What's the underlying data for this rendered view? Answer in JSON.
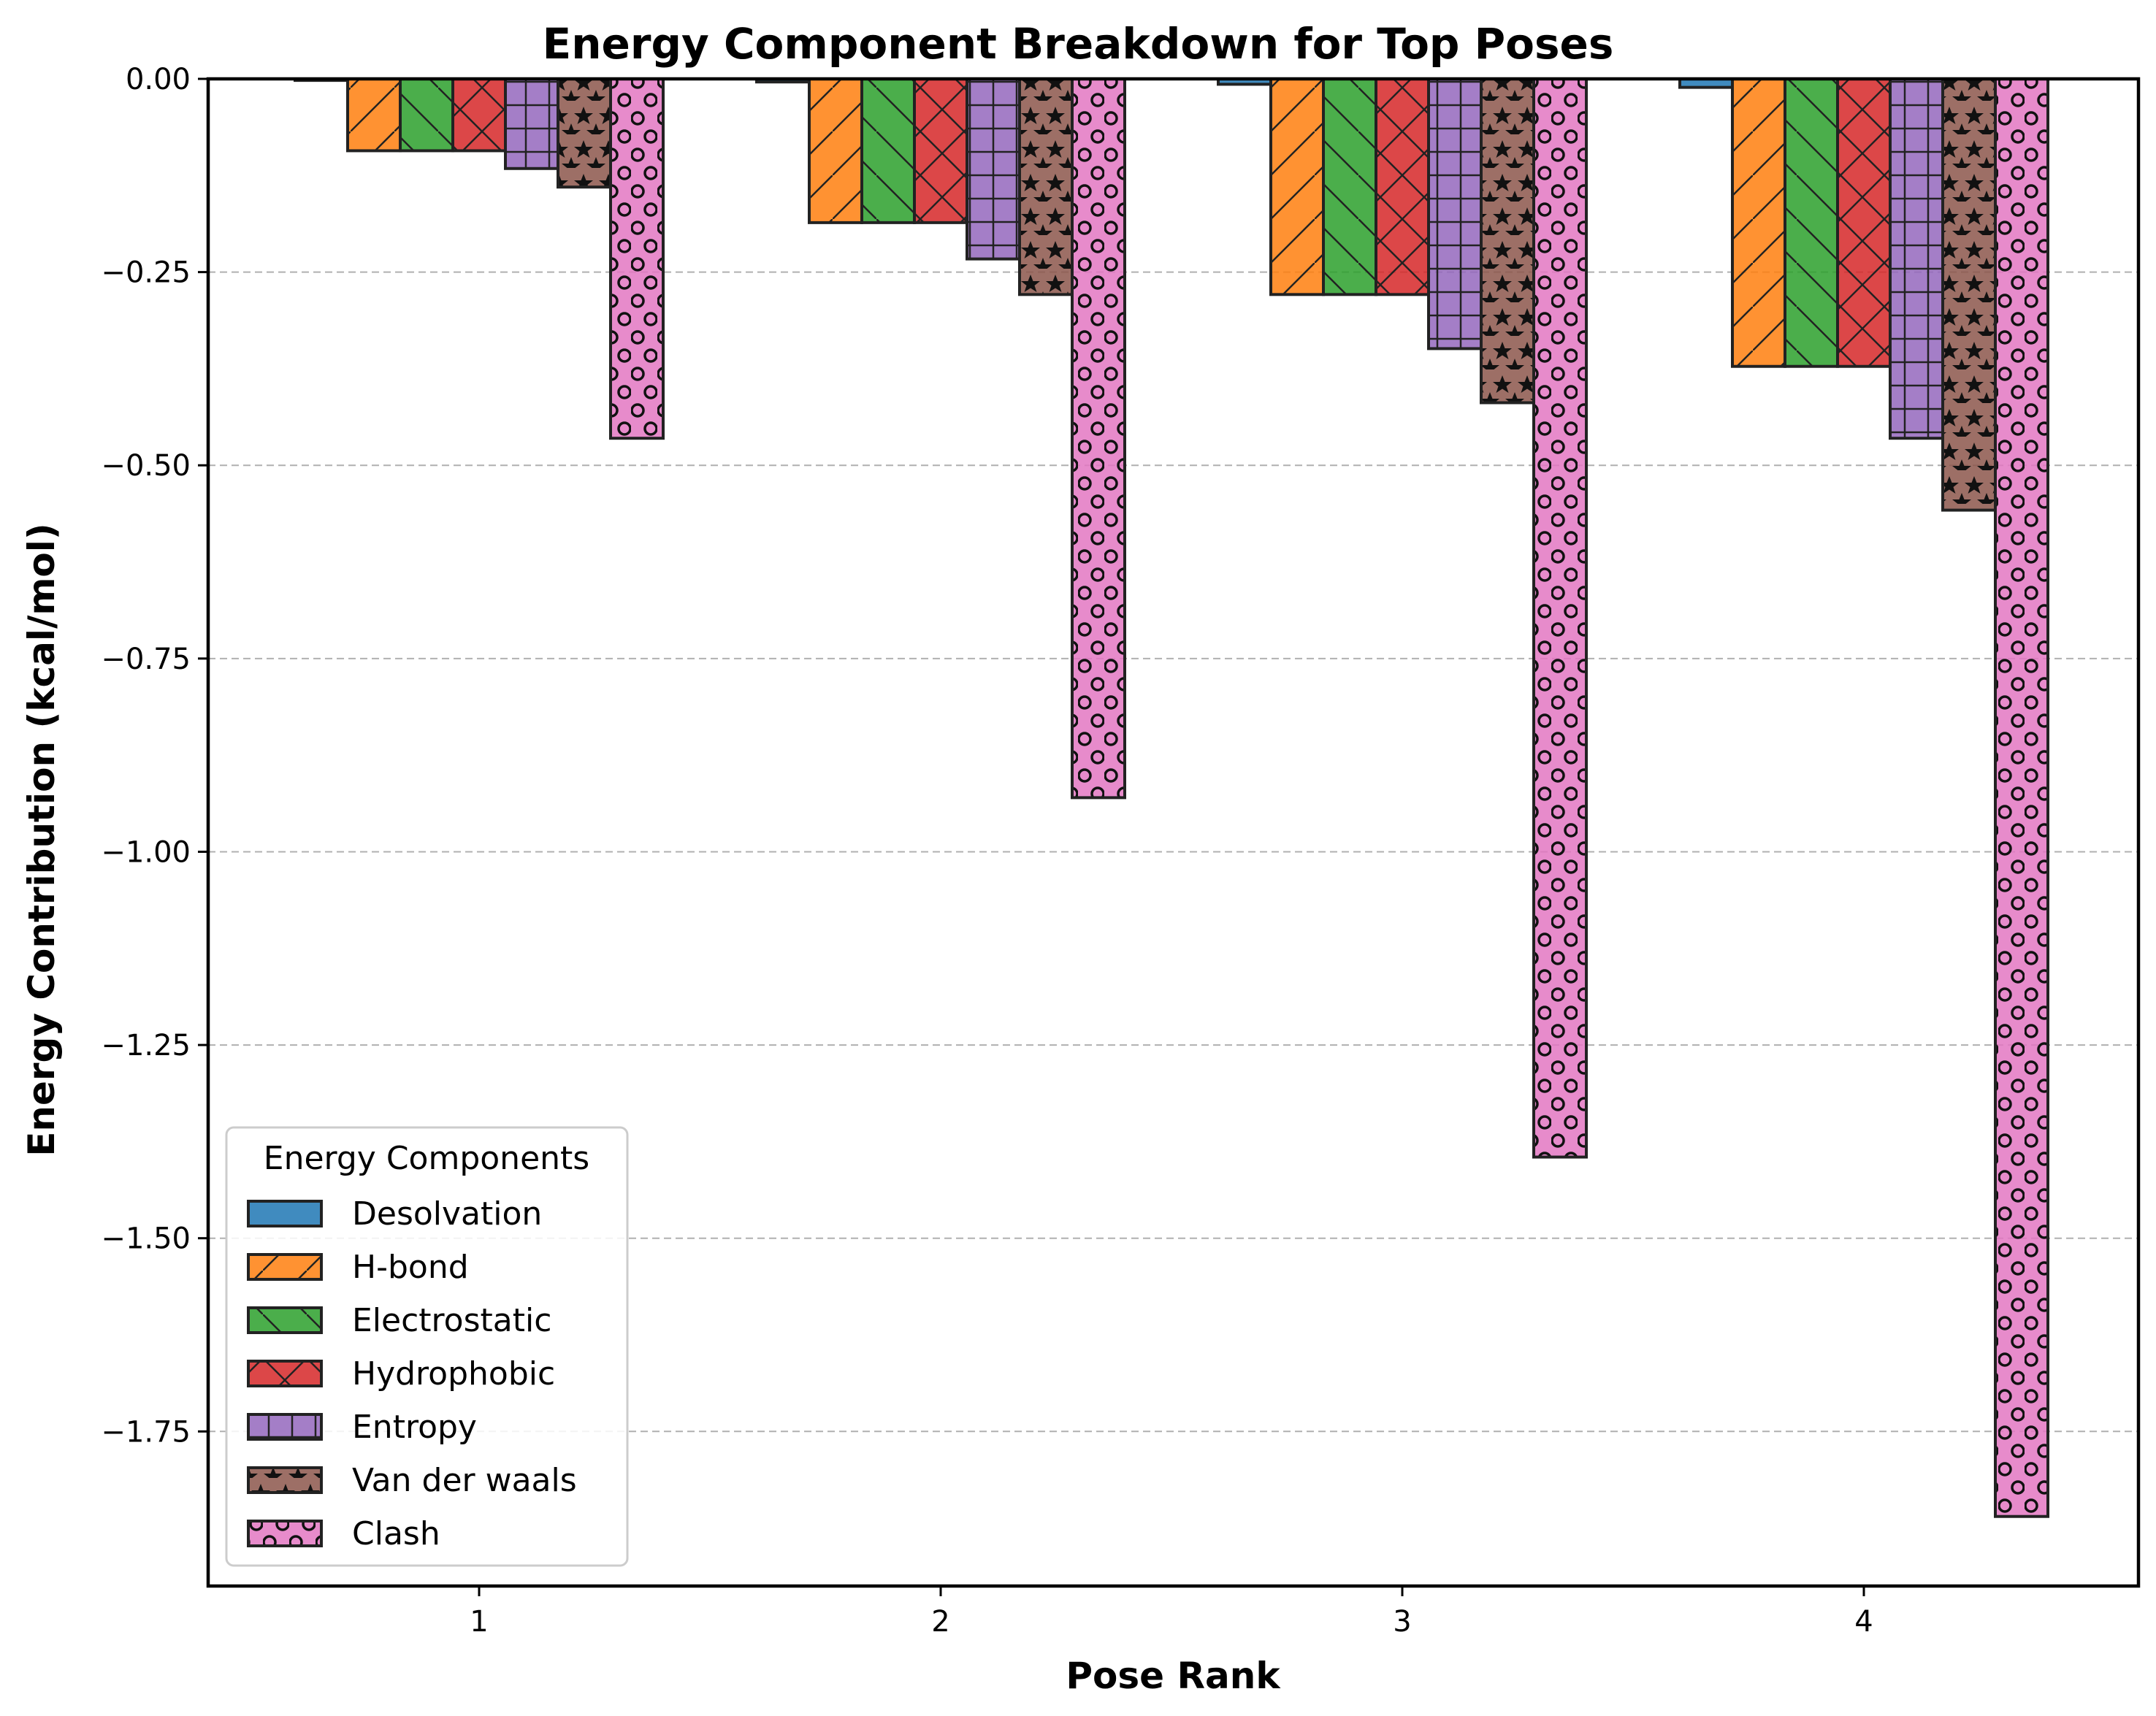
{
  "chart_data": {
    "type": "bar",
    "title": "Energy Component Breakdown for Top Poses",
    "xlabel": "Pose Rank",
    "ylabel": "Energy Contribution (kcal/mol)",
    "categories": [
      "1",
      "2",
      "3",
      "4"
    ],
    "ylim": [
      -1.95,
      0.0
    ],
    "yticks": [
      "0.00",
      "−0.25",
      "−0.50",
      "−0.75",
      "−1.00",
      "−1.25",
      "−1.50",
      "−1.75"
    ],
    "ytick_values": [
      0.0,
      -0.25,
      -0.5,
      -0.75,
      -1.0,
      -1.25,
      -1.5,
      -1.75
    ],
    "grid": "y-dashed",
    "legend": {
      "title": "Energy Components",
      "placement": "lower-left"
    },
    "series": [
      {
        "name": "Desolvation",
        "color": "#1f77b4",
        "hatch": "none",
        "values": [
          -0.002,
          -0.004,
          -0.007,
          -0.011
        ]
      },
      {
        "name": "H-bond",
        "color": "#ff7f0e",
        "hatch": "slash",
        "values": [
          -0.093,
          -0.186,
          -0.279,
          -0.372
        ]
      },
      {
        "name": "Electrostatic",
        "color": "#2ca02c",
        "hatch": "back",
        "values": [
          -0.093,
          -0.186,
          -0.279,
          -0.372
        ]
      },
      {
        "name": "Hydrophobic",
        "color": "#d62728",
        "hatch": "cross",
        "values": [
          -0.093,
          -0.186,
          -0.279,
          -0.372
        ]
      },
      {
        "name": "Entropy",
        "color": "#9467bd",
        "hatch": "plus",
        "values": [
          -0.116,
          -0.233,
          -0.349,
          -0.465
        ]
      },
      {
        "name": "Van der waals",
        "color": "#8c564b",
        "hatch": "star",
        "values": [
          -0.14,
          -0.279,
          -0.419,
          -0.558
        ]
      },
      {
        "name": "Clash",
        "color": "#e377c2",
        "hatch": "circle",
        "values": [
          -0.465,
          -0.93,
          -1.395,
          -1.86
        ]
      }
    ]
  }
}
